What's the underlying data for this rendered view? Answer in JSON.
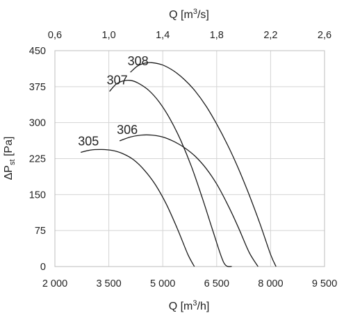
{
  "chart_data": {
    "type": "line",
    "title": "",
    "grid": true,
    "x_axis_bottom": {
      "label_parts": [
        "Q [m",
        "3",
        "/h]"
      ],
      "range": [
        2000,
        9500
      ],
      "ticks": [
        2000,
        3500,
        5000,
        6500,
        8000,
        9500
      ],
      "tick_labels": [
        "2 000",
        "3 500",
        "5 000",
        "6 500",
        "8 000",
        "9 500"
      ]
    },
    "x_axis_top": {
      "label_parts": [
        "Q [m",
        "3",
        "/s]"
      ],
      "range": [
        0.6,
        2.6
      ],
      "ticks": [
        0.6,
        1.0,
        1.4,
        1.8,
        2.2,
        2.6
      ],
      "tick_labels": [
        "0,6",
        "1,0",
        "1,4",
        "1,8",
        "2,2",
        "2,6"
      ]
    },
    "y_axis": {
      "label_parts": [
        "ΔP",
        "st",
        " [Pa]"
      ],
      "range": [
        0,
        450
      ],
      "ticks": [
        0,
        75,
        150,
        225,
        300,
        375,
        450
      ],
      "tick_labels": [
        "0",
        "75",
        "150",
        "225",
        "300",
        "375",
        "450"
      ]
    },
    "series": [
      {
        "name": "305",
        "x": [
          2720,
          3000,
          3300,
          3600,
          3900,
          4200,
          4500,
          4800,
          5100,
          5400,
          5700,
          5880
        ],
        "y": [
          238,
          243,
          244,
          242,
          235,
          222,
          200,
          170,
          130,
          80,
          25,
          0
        ]
      },
      {
        "name": "306",
        "x": [
          3800,
          4100,
          4400,
          4700,
          5000,
          5300,
          5600,
          5900,
          6200,
          6500,
          6800,
          7100,
          7400,
          7650
        ],
        "y": [
          262,
          270,
          274,
          274,
          270,
          261,
          248,
          230,
          205,
          172,
          130,
          82,
          30,
          0
        ]
      },
      {
        "name": "307",
        "x": [
          3520,
          3700,
          3900,
          4100,
          4300,
          4600,
          4900,
          5200,
          5500,
          5800,
          6100,
          6400,
          6700,
          6920
        ],
        "y": [
          365,
          380,
          387,
          388,
          383,
          368,
          343,
          308,
          263,
          208,
          143,
          73,
          8,
          0
        ]
      },
      {
        "name": "308",
        "x": [
          4100,
          4300,
          4500,
          4700,
          5000,
          5300,
          5600,
          5900,
          6200,
          6500,
          6800,
          7100,
          7400,
          7700,
          8000,
          8150
        ],
        "y": [
          405,
          418,
          424,
          425,
          420,
          408,
          390,
          366,
          335,
          297,
          254,
          205,
          150,
          90,
          25,
          0
        ]
      }
    ]
  }
}
